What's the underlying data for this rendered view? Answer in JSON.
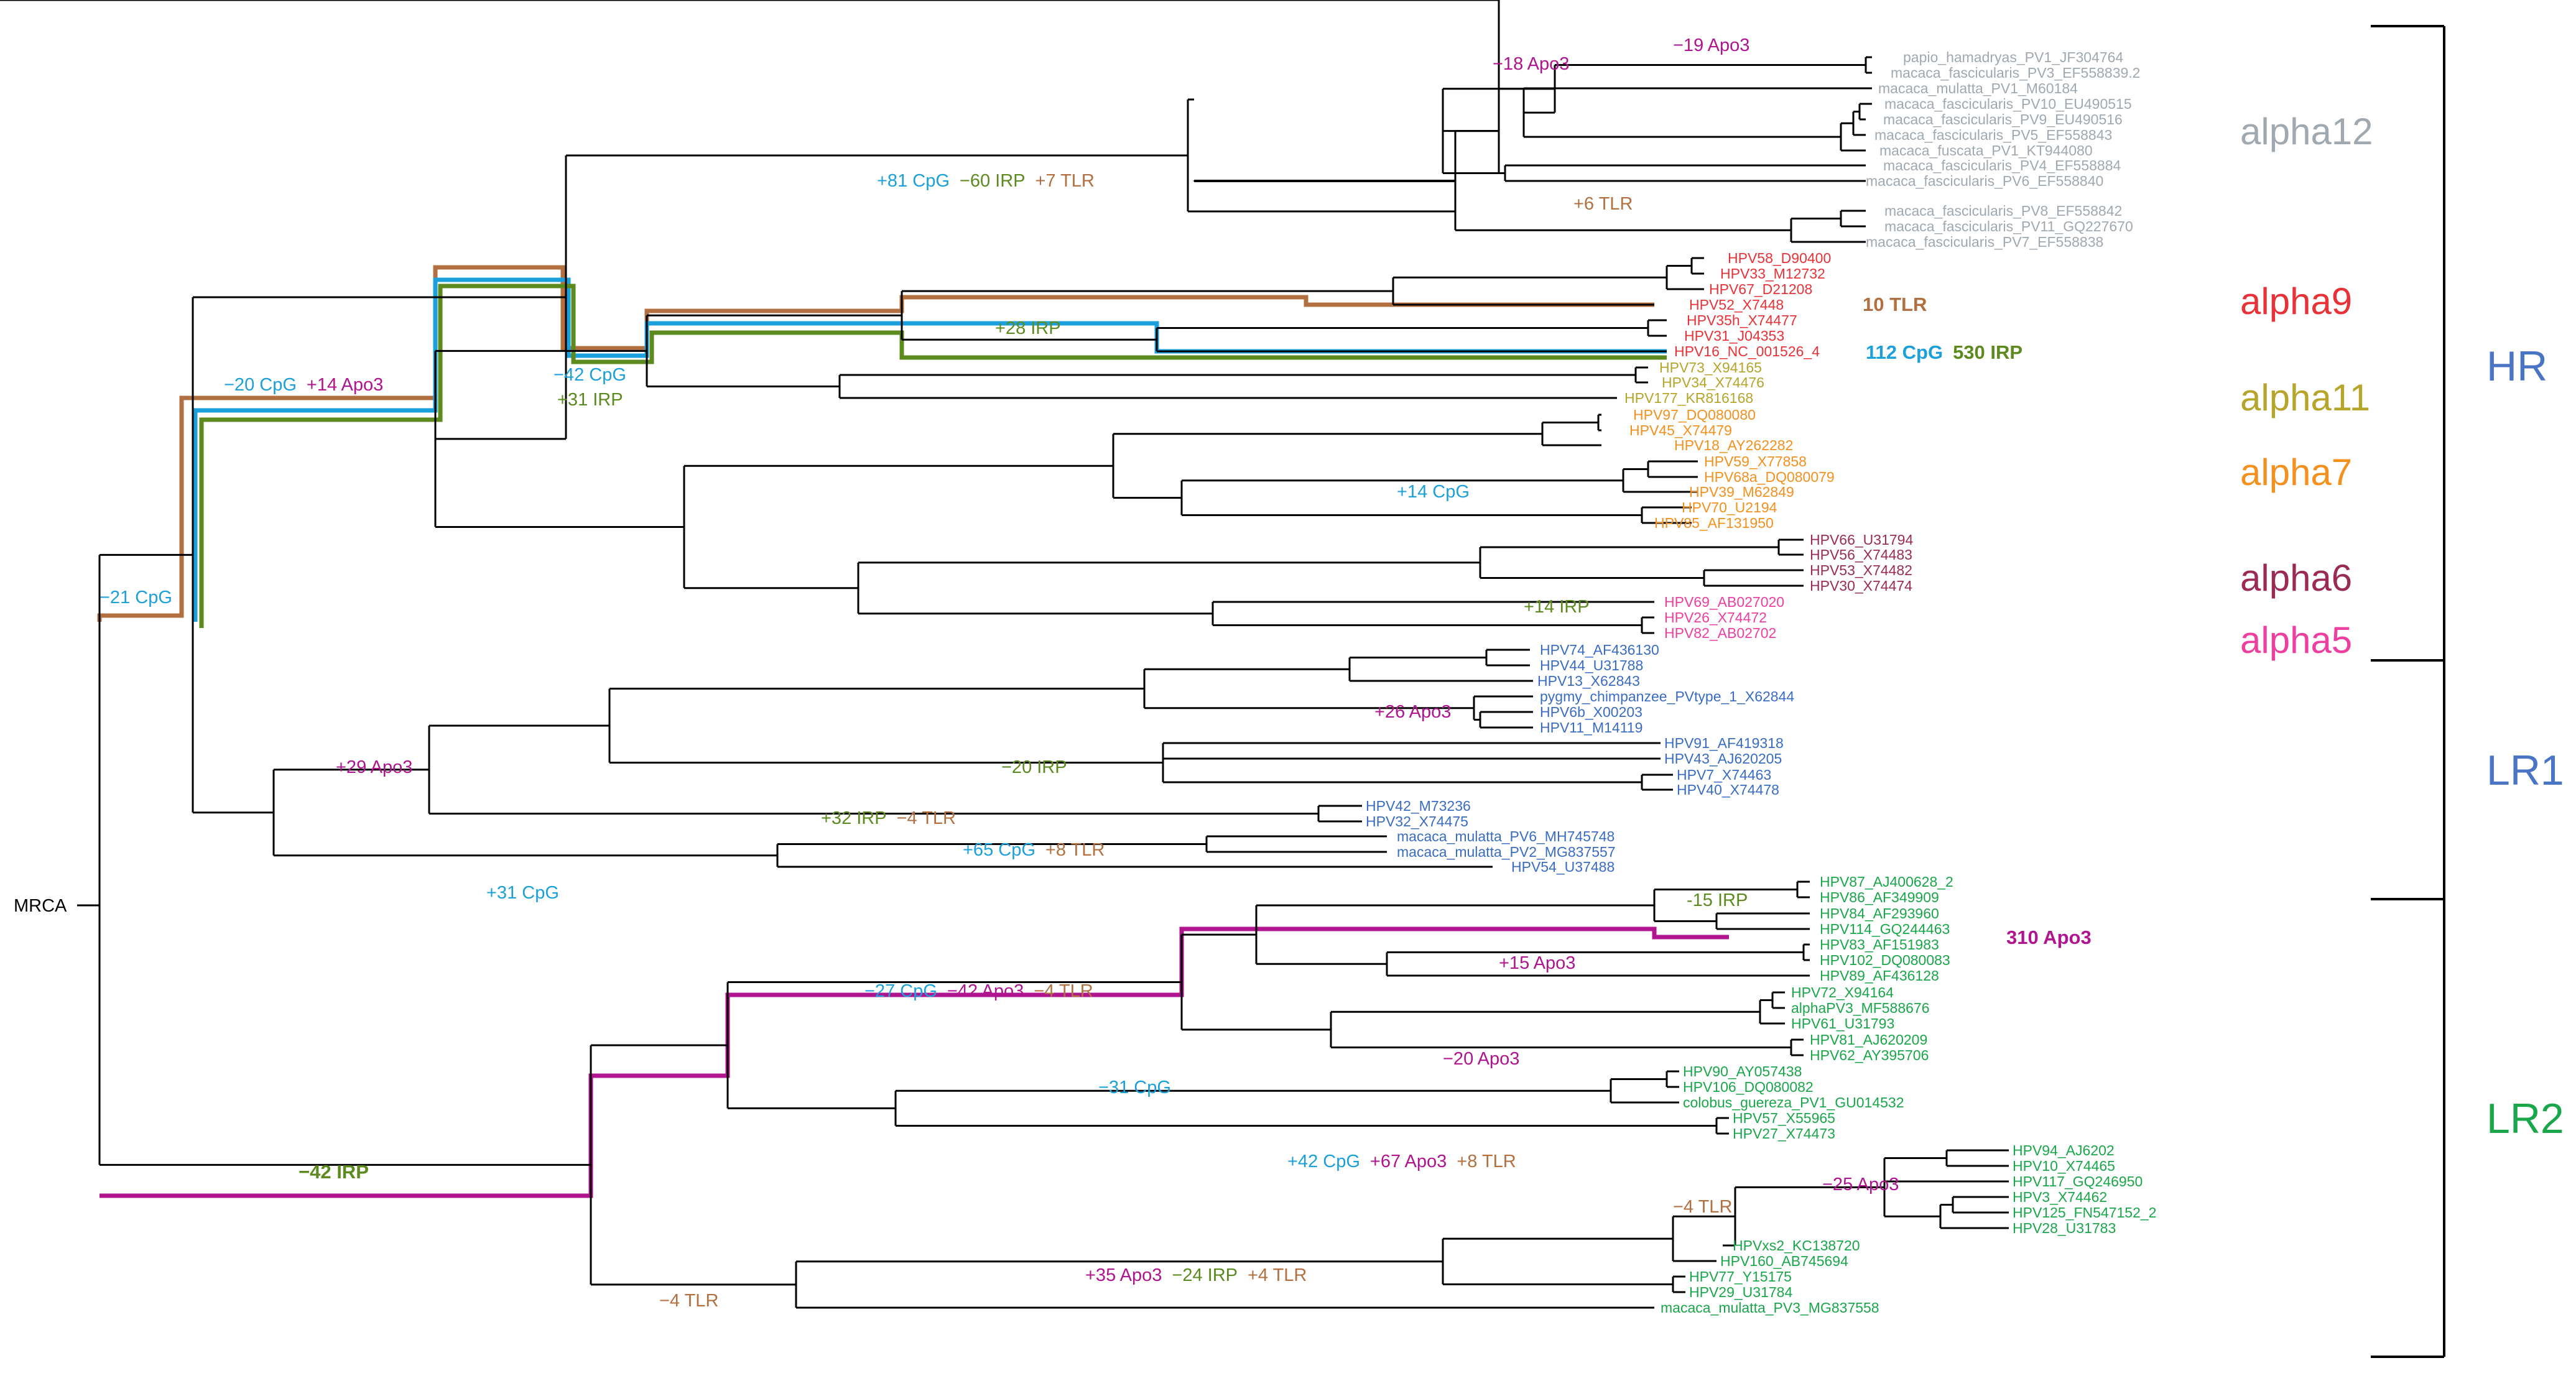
{
  "colors": {
    "alpha12": "#a0a8b0",
    "alpha9": "#e83238",
    "alpha11": "#b5a52a",
    "alpha7": "#f4901e",
    "alpha6": "#9b2b55",
    "alpha5": "#ee3fa0",
    "LR1": "#3a6cc4",
    "LR2": "#1aa64a",
    "CpG": "#1ba0dc",
    "IRP": "#5c8a1e",
    "Apo3": "#b0148e",
    "TLR": "#b27040",
    "group": "#4a74c4",
    "line": "#000000"
  },
  "root_label": "MRCA",
  "groups": [
    {
      "key": "HR",
      "label": "HR"
    },
    {
      "key": "LR1",
      "label": "LR1"
    },
    {
      "key": "LR2",
      "label": "LR2"
    }
  ],
  "clades": [
    {
      "key": "alpha12",
      "label": "alpha12"
    },
    {
      "key": "alpha9",
      "label": "alpha9"
    },
    {
      "key": "alpha11",
      "label": "alpha11"
    },
    {
      "key": "alpha7",
      "label": "alpha7"
    },
    {
      "key": "alpha6",
      "label": "alpha6"
    },
    {
      "key": "alpha5",
      "label": "alpha5"
    },
    {
      "key": "LR1",
      "label": "LR1"
    },
    {
      "key": "LR2",
      "label": "LR2"
    }
  ],
  "leaves": [
    {
      "name": "papio_hamadryas_PV1_JF304764",
      "clade": "alpha12"
    },
    {
      "name": "macaca_fascicularis_PV3_EF558839.2",
      "clade": "alpha12"
    },
    {
      "name": "macaca_mulatta_PV1_M60184",
      "clade": "alpha12"
    },
    {
      "name": "macaca_fascicularis_PV10_EU490515",
      "clade": "alpha12"
    },
    {
      "name": "macaca_fascicularis_PV9_EU490516",
      "clade": "alpha12"
    },
    {
      "name": "macaca_fascicularis_PV5_EF558843",
      "clade": "alpha12"
    },
    {
      "name": "macaca_fuscata_PV1_KT944080",
      "clade": "alpha12"
    },
    {
      "name": "macaca_fascicularis_PV4_EF558884",
      "clade": "alpha12"
    },
    {
      "name": "macaca_fascicularis_PV6_EF558840",
      "clade": "alpha12"
    },
    {
      "name": "macaca_fascicularis_PV8_EF558842",
      "clade": "alpha12"
    },
    {
      "name": "macaca_fascicularis_PV11_GQ227670",
      "clade": "alpha12"
    },
    {
      "name": "macaca_fascicularis_PV7_EF558838",
      "clade": "alpha12"
    },
    {
      "name": "HPV58_D90400",
      "clade": "alpha9"
    },
    {
      "name": "HPV33_M12732",
      "clade": "alpha9"
    },
    {
      "name": "HPV67_D21208",
      "clade": "alpha9"
    },
    {
      "name": "HPV52_X7448",
      "clade": "alpha9"
    },
    {
      "name": "HPV35h_X74477",
      "clade": "alpha9"
    },
    {
      "name": "HPV31_J04353",
      "clade": "alpha9"
    },
    {
      "name": "HPV16_NC_001526_4",
      "clade": "alpha9"
    },
    {
      "name": "HPV73_X94165",
      "clade": "alpha11"
    },
    {
      "name": "HPV34_X74476",
      "clade": "alpha11"
    },
    {
      "name": "HPV177_KR816168",
      "clade": "alpha11"
    },
    {
      "name": "HPV97_DQ080080",
      "clade": "alpha7"
    },
    {
      "name": "HPV45_X74479",
      "clade": "alpha7"
    },
    {
      "name": "HPV18_AY262282",
      "clade": "alpha7"
    },
    {
      "name": "HPV59_X77858",
      "clade": "alpha7"
    },
    {
      "name": "HPV68a_DQ080079",
      "clade": "alpha7"
    },
    {
      "name": "HPV39_M62849",
      "clade": "alpha7"
    },
    {
      "name": "HPV70_U2194",
      "clade": "alpha7"
    },
    {
      "name": "HPV85_AF131950",
      "clade": "alpha7"
    },
    {
      "name": "HPV66_U31794",
      "clade": "alpha6"
    },
    {
      "name": "HPV56_X74483",
      "clade": "alpha6"
    },
    {
      "name": "HPV53_X74482",
      "clade": "alpha6"
    },
    {
      "name": "HPV30_X74474",
      "clade": "alpha6"
    },
    {
      "name": "HPV69_AB027020",
      "clade": "alpha5"
    },
    {
      "name": "HPV26_X74472",
      "clade": "alpha5"
    },
    {
      "name": "HPV82_AB02702",
      "clade": "alpha5"
    },
    {
      "name": "HPV74_AF436130",
      "clade": "LR1"
    },
    {
      "name": "HPV44_U31788",
      "clade": "LR1"
    },
    {
      "name": "HPV13_X62843",
      "clade": "LR1"
    },
    {
      "name": "pygmy_chimpanzee_PVtype_1_X62844",
      "clade": "LR1"
    },
    {
      "name": "HPV6b_X00203",
      "clade": "LR1"
    },
    {
      "name": "HPV11_M14119",
      "clade": "LR1"
    },
    {
      "name": "HPV91_AF419318",
      "clade": "LR1"
    },
    {
      "name": "HPV43_AJ620205",
      "clade": "LR1"
    },
    {
      "name": "HPV7_X74463",
      "clade": "LR1"
    },
    {
      "name": "HPV40_X74478",
      "clade": "LR1"
    },
    {
      "name": "HPV42_M73236",
      "clade": "LR1"
    },
    {
      "name": "HPV32_X74475",
      "clade": "LR1"
    },
    {
      "name": "macaca_mulatta_PV6_MH745748",
      "clade": "LR1"
    },
    {
      "name": "macaca_mulatta_PV2_MG837557",
      "clade": "LR1"
    },
    {
      "name": "HPV54_U37488",
      "clade": "LR1"
    },
    {
      "name": "HPV87_AJ400628_2",
      "clade": "LR2"
    },
    {
      "name": "HPV86_AF349909",
      "clade": "LR2"
    },
    {
      "name": "HPV84_AF293960",
      "clade": "LR2"
    },
    {
      "name": "HPV114_GQ244463",
      "clade": "LR2"
    },
    {
      "name": "HPV83_AF151983",
      "clade": "LR2"
    },
    {
      "name": "HPV102_DQ080083",
      "clade": "LR2"
    },
    {
      "name": "HPV89_AF436128",
      "clade": "LR2"
    },
    {
      "name": "HPV72_X94164",
      "clade": "LR2"
    },
    {
      "name": "alphaPV3_MF588676",
      "clade": "LR2"
    },
    {
      "name": "HPV61_U31793",
      "clade": "LR2"
    },
    {
      "name": "HPV81_AJ620209",
      "clade": "LR2"
    },
    {
      "name": "HPV62_AY395706",
      "clade": "LR2"
    },
    {
      "name": "HPV90_AY057438",
      "clade": "LR2"
    },
    {
      "name": "HPV106_DQ080082",
      "clade": "LR2"
    },
    {
      "name": "colobus_guereza_PV1_GU014532",
      "clade": "LR2"
    },
    {
      "name": "HPV57_X55965",
      "clade": "LR2"
    },
    {
      "name": "HPV27_X74473",
      "clade": "LR2"
    },
    {
      "name": "HPV94_AJ6202",
      "clade": "LR2"
    },
    {
      "name": "HPV10_X74465",
      "clade": "LR2"
    },
    {
      "name": "HPV117_GQ246950",
      "clade": "LR2"
    },
    {
      "name": "HPV3_X74462",
      "clade": "LR2"
    },
    {
      "name": "HPV125_FN547152_2",
      "clade": "LR2"
    },
    {
      "name": "HPV28_U31783",
      "clade": "LR2"
    },
    {
      "name": "HPVxs2_KC138720",
      "clade": "LR2"
    },
    {
      "name": "HPV160_AB745694",
      "clade": "LR2"
    },
    {
      "name": "HPV77_Y15175",
      "clade": "LR2"
    },
    {
      "name": "HPV29_U31784",
      "clade": "LR2"
    },
    {
      "name": "macaca_mulatta_PV3_MG837558",
      "clade": "LR2"
    }
  ],
  "annotations": [
    {
      "id": "a1",
      "parts": [
        {
          "text": "−19 Apo3",
          "type": "Apo3"
        }
      ]
    },
    {
      "id": "a2",
      "parts": [
        {
          "text": "−18 Apo3",
          "type": "Apo3"
        }
      ]
    },
    {
      "id": "a3",
      "parts": [
        {
          "text": "+81 CpG",
          "type": "CpG"
        },
        {
          "text": "−60 IRP",
          "type": "IRP"
        },
        {
          "text": "+7 TLR",
          "type": "TLR"
        }
      ]
    },
    {
      "id": "a4",
      "parts": [
        {
          "text": "+6 TLR",
          "type": "TLR"
        }
      ]
    },
    {
      "id": "a5",
      "parts": [
        {
          "text": "10 TLR",
          "type": "TLR"
        }
      ],
      "bold": true
    },
    {
      "id": "a6",
      "parts": [
        {
          "text": "+28 IRP",
          "type": "IRP"
        }
      ]
    },
    {
      "id": "a7",
      "parts": [
        {
          "text": "112 CpG",
          "type": "CpG"
        },
        {
          "text": "530 IRP",
          "type": "IRP"
        }
      ],
      "bold": true
    },
    {
      "id": "a8",
      "parts": [
        {
          "text": "−20 CpG",
          "type": "CpG"
        },
        {
          "text": "+14 Apo3",
          "type": "Apo3"
        }
      ]
    },
    {
      "id": "a9",
      "parts": [
        {
          "text": "−42 CpG",
          "type": "CpG"
        }
      ]
    },
    {
      "id": "a10",
      "parts": [
        {
          "text": "+31 IRP",
          "type": "IRP"
        }
      ]
    },
    {
      "id": "a11",
      "parts": [
        {
          "text": "+14 CpG",
          "type": "CpG"
        }
      ]
    },
    {
      "id": "a12",
      "parts": [
        {
          "text": "−21 CpG",
          "type": "CpG"
        }
      ]
    },
    {
      "id": "a13",
      "parts": [
        {
          "text": "+14 IRP",
          "type": "IRP"
        }
      ]
    },
    {
      "id": "a14",
      "parts": [
        {
          "text": "+26 Apo3",
          "type": "Apo3"
        }
      ]
    },
    {
      "id": "a15",
      "parts": [
        {
          "text": "+29 Apo3",
          "type": "Apo3"
        }
      ]
    },
    {
      "id": "a16",
      "parts": [
        {
          "text": "−20 IRP",
          "type": "IRP"
        }
      ]
    },
    {
      "id": "a17",
      "parts": [
        {
          "text": "+32 IRP",
          "type": "IRP"
        },
        {
          "text": "−4 TLR",
          "type": "TLR"
        }
      ]
    },
    {
      "id": "a18",
      "parts": [
        {
          "text": "+65 CpG",
          "type": "CpG"
        },
        {
          "text": "+8 TLR",
          "type": "TLR"
        }
      ]
    },
    {
      "id": "a19",
      "parts": [
        {
          "text": "+31 CpG",
          "type": "CpG"
        }
      ]
    },
    {
      "id": "a20",
      "parts": [
        {
          "text": "-15 IRP",
          "type": "IRP"
        }
      ]
    },
    {
      "id": "a21",
      "parts": [
        {
          "text": "310 Apo3",
          "type": "Apo3"
        }
      ],
      "bold": true
    },
    {
      "id": "a22",
      "parts": [
        {
          "text": "+15 Apo3",
          "type": "Apo3"
        }
      ]
    },
    {
      "id": "a23",
      "parts": [
        {
          "text": "−27 CpG",
          "type": "CpG"
        },
        {
          "text": "−42 Apo3",
          "type": "Apo3"
        },
        {
          "text": "−4 TLR",
          "type": "TLR"
        }
      ]
    },
    {
      "id": "a24",
      "parts": [
        {
          "text": "−20 Apo3",
          "type": "Apo3"
        }
      ]
    },
    {
      "id": "a25",
      "parts": [
        {
          "text": "−31 CpG",
          "type": "CpG"
        }
      ]
    },
    {
      "id": "a26",
      "parts": [
        {
          "text": "−42 IRP",
          "type": "IRP"
        }
      ],
      "bold": true
    },
    {
      "id": "a27",
      "parts": [
        {
          "text": "+42 CpG",
          "type": "CpG"
        },
        {
          "text": "+67 Apo3",
          "type": "Apo3"
        },
        {
          "text": "+8 TLR",
          "type": "TLR"
        }
      ]
    },
    {
      "id": "a28",
      "parts": [
        {
          "text": "−25 Apo3",
          "type": "Apo3"
        }
      ]
    },
    {
      "id": "a29",
      "parts": [
        {
          "text": "−4 TLR",
          "type": "TLR"
        }
      ]
    },
    {
      "id": "a30",
      "parts": [
        {
          "text": "+35 Apo3",
          "type": "Apo3"
        },
        {
          "text": "−24 IRP",
          "type": "IRP"
        },
        {
          "text": "+4 TLR",
          "type": "TLR"
        }
      ]
    },
    {
      "id": "a31",
      "parts": [
        {
          "text": "−4 TLR",
          "type": "TLR"
        }
      ]
    }
  ]
}
